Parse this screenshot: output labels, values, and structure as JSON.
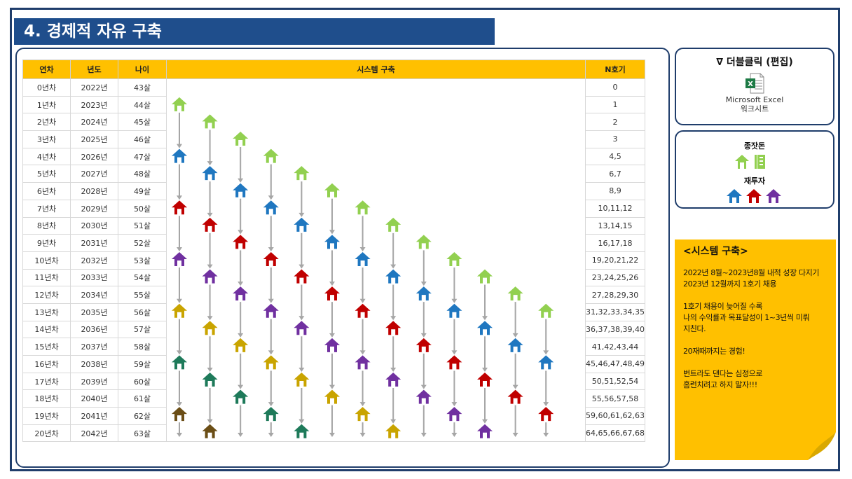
{
  "title": "4. 경제적 자유 구축",
  "table": {
    "headers": [
      "연차",
      "년도",
      "나이",
      "시스템 구축",
      "N호기"
    ],
    "rows": [
      [
        "0년차",
        "2022년",
        "43살",
        "0"
      ],
      [
        "1년차",
        "2023년",
        "44살",
        "1"
      ],
      [
        "2년차",
        "2024년",
        "45살",
        "2"
      ],
      [
        "3년차",
        "2025년",
        "46살",
        "3"
      ],
      [
        "4년차",
        "2026년",
        "47살",
        "4,5"
      ],
      [
        "5년차",
        "2027년",
        "48살",
        "6,7"
      ],
      [
        "6년차",
        "2028년",
        "49살",
        "8,9"
      ],
      [
        "7년차",
        "2029년",
        "50살",
        "10,11,12"
      ],
      [
        "8년차",
        "2030년",
        "51살",
        "13,14,15"
      ],
      [
        "9년차",
        "2031년",
        "52살",
        "16,17,18"
      ],
      [
        "10년차",
        "2032년",
        "53살",
        "19,20,21,22"
      ],
      [
        "11년차",
        "2033년",
        "54살",
        "23,24,25,26"
      ],
      [
        "12년차",
        "2034년",
        "55살",
        "27,28,29,30"
      ],
      [
        "13년차",
        "2035년",
        "56살",
        "31,32,33,34,35"
      ],
      [
        "14년차",
        "2036년",
        "57살",
        "36,37,38,39,40"
      ],
      [
        "15년차",
        "2037년",
        "58살",
        "41,42,43,44"
      ],
      [
        "16년차",
        "2038년",
        "59살",
        "45,46,47,48,49"
      ],
      [
        "17년차",
        "2039년",
        "60살",
        "50,51,52,54"
      ],
      [
        "18년차",
        "2040년",
        "61살",
        "55,56,57,58"
      ],
      [
        "19년차",
        "2041년",
        "62살",
        "59,60,61,62,63"
      ],
      [
        "20년차",
        "2042년",
        "63살",
        "64,65,66,67,68"
      ]
    ]
  },
  "embed": {
    "header": "∇ 더블클릭 (편집)",
    "app_line1": "Microsoft Excel",
    "app_line2": "워크시트"
  },
  "legend": {
    "seed_label": "종잣돈",
    "reinvest_label": "재투자"
  },
  "note": {
    "heading": "<시스템 구축>",
    "lines": [
      "2022년 8월~2023년8월 내적 성장 다지기",
      "2023년 12월까지 1호기 채용",
      "",
      "1호기 채용이 늦어질 수록",
      "나의 수익률과 목표달성이 1~3년씩 미뤄",
      "지친다.",
      "",
      "20재때까지는 경험!",
      "",
      "번트라도 댄다는 심정으로",
      "홈런치려고 하지 말자!!!"
    ]
  },
  "colors": {
    "frame": "#1f3d6b",
    "title_bg": "#1f4e8c",
    "accent_yellow": "#ffc000",
    "house_green": "#92d050",
    "house_blue": "#1f77c0",
    "house_red": "#c00000",
    "house_purple": "#7030a0",
    "house_mustard": "#c9a400",
    "house_teal": "#1e7a5a",
    "house_brown": "#6b4e16",
    "arrow_gray": "#a6a6a6"
  },
  "icons": {
    "house": "house-icon",
    "excel": "excel-icon",
    "building": "building-icon",
    "arrow": "down-arrow-icon"
  }
}
